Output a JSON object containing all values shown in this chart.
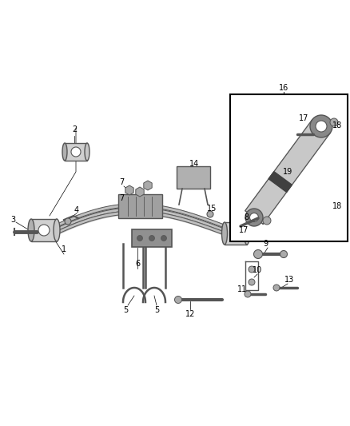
{
  "bg_color": "#ffffff",
  "dgray": "#555555",
  "lgray": "#aaaaaa",
  "mgray": "#888888",
  "cgray": "#cccccc",
  "black": "#000000",
  "figsize": [
    4.38,
    5.33
  ],
  "dpi": 100,
  "xlim": [
    0,
    438
  ],
  "ylim": [
    0,
    533
  ]
}
